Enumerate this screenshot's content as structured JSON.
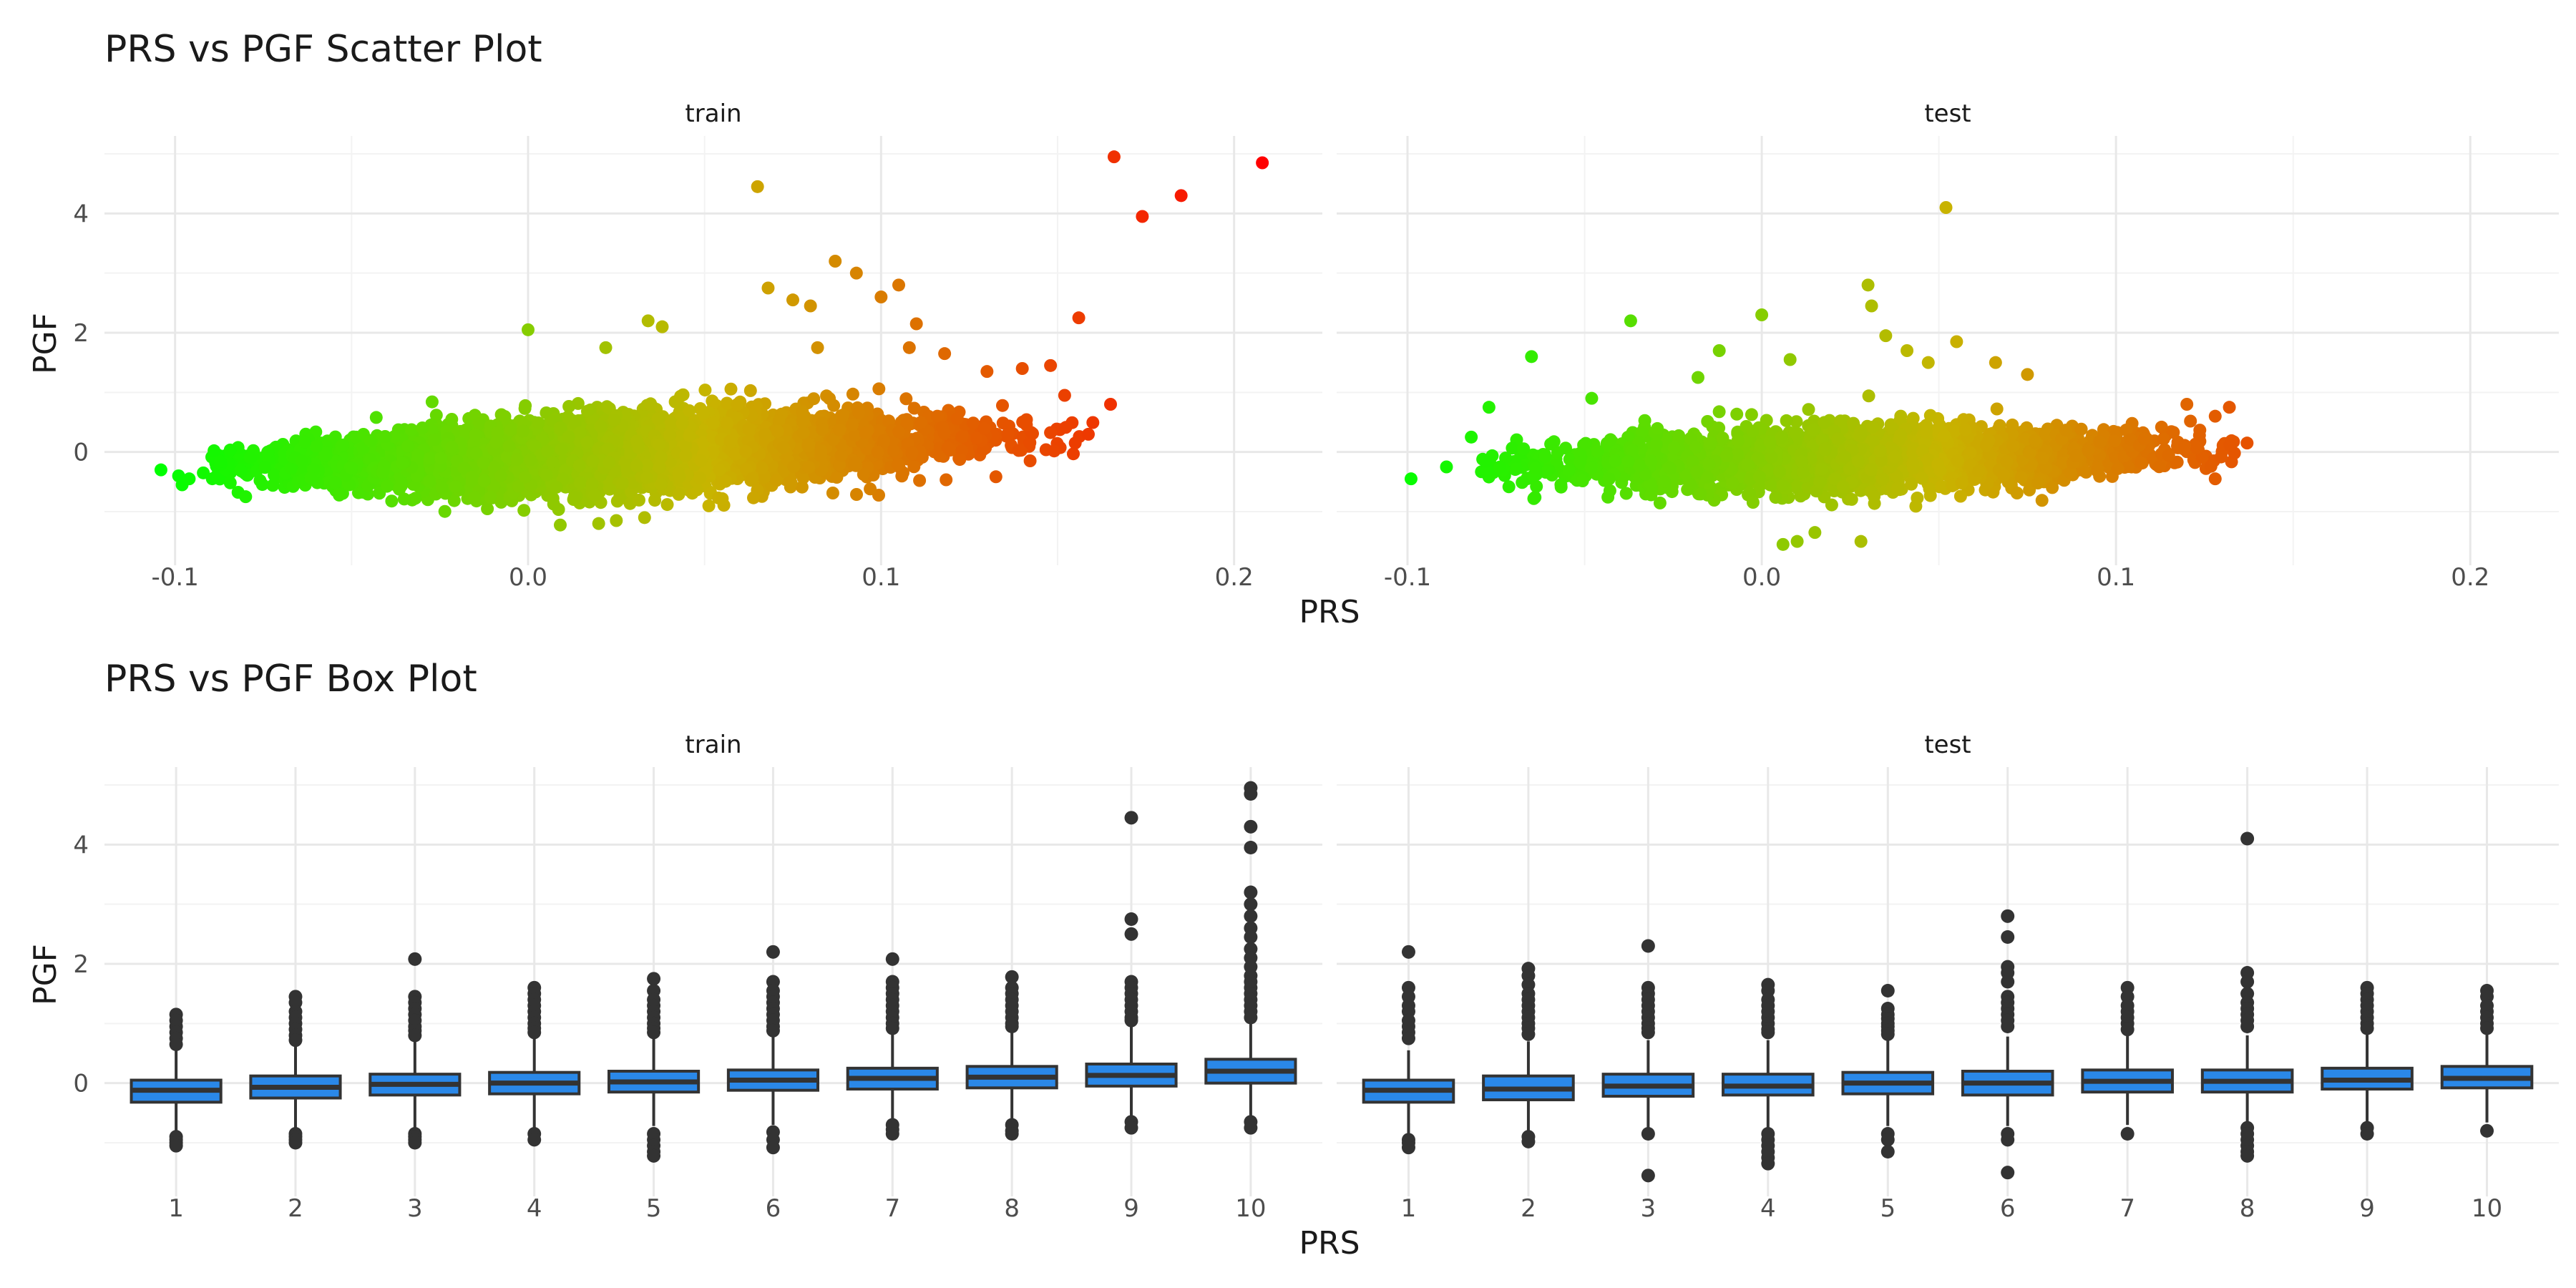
{
  "chart_data": [
    {
      "type": "scatter",
      "title": "PRS vs PGF Scatter Plot",
      "xlabel": "PRS",
      "ylabel": "PGF",
      "facets": [
        "train",
        "test"
      ],
      "xlim": [
        -0.12,
        0.225
      ],
      "ylim": [
        -1.9,
        5.3
      ],
      "x_ticks": [
        -0.1,
        0.0,
        0.1,
        0.2
      ],
      "x_tick_labels": [
        "-0.1",
        "0.0",
        "0.1",
        "0.2"
      ],
      "y_ticks": [
        0,
        2,
        4
      ],
      "y_tick_labels": [
        "0",
        "2",
        "4"
      ],
      "grid": true,
      "legend": "none",
      "color_scale": {
        "low": "#00ff00",
        "mid": "#c8b400",
        "high": "#ff0000",
        "mapped_to": "PRS"
      },
      "cloud_shape": {
        "train": {
          "x_range": [
            -0.09,
            0.16
          ],
          "y_center_at_min_x": -0.25,
          "y_center_at_max_x": 0.3,
          "y_spread": 0.55
        },
        "test": {
          "x_range": [
            -0.08,
            0.135
          ],
          "y_center_at_min_x": -0.25,
          "y_center_at_max_x": 0.05,
          "y_spread": 0.5
        }
      },
      "series": [
        {
          "name": "train",
          "points": [
            [
              -0.104,
              -0.3
            ],
            [
              -0.099,
              -0.4
            ],
            [
              -0.098,
              -0.55
            ],
            [
              -0.096,
              -0.45
            ],
            [
              -0.092,
              -0.35
            ],
            [
              -0.08,
              -0.75
            ],
            [
              0.0,
              2.05
            ],
            [
              0.022,
              1.75
            ],
            [
              0.034,
              2.2
            ],
            [
              0.038,
              2.1
            ],
            [
              0.065,
              4.45
            ],
            [
              0.068,
              2.75
            ],
            [
              0.075,
              2.55
            ],
            [
              0.08,
              2.45
            ],
            [
              0.082,
              1.75
            ],
            [
              0.087,
              3.2
            ],
            [
              0.093,
              3.0
            ],
            [
              0.1,
              2.6
            ],
            [
              0.105,
              2.8
            ],
            [
              0.108,
              1.75
            ],
            [
              0.11,
              2.15
            ],
            [
              0.118,
              1.65
            ],
            [
              0.13,
              1.35
            ],
            [
              0.14,
              1.4
            ],
            [
              0.148,
              1.45
            ],
            [
              0.152,
              0.95
            ],
            [
              0.155,
              0.15
            ],
            [
              0.156,
              2.25
            ],
            [
              0.165,
              0.8
            ],
            [
              0.166,
              4.95
            ],
            [
              0.174,
              3.95
            ],
            [
              0.185,
              4.3
            ],
            [
              0.208,
              4.85
            ],
            [
              0.02,
              -1.2
            ],
            [
              0.025,
              -1.15
            ],
            [
              0.033,
              -1.1
            ]
          ]
        },
        {
          "name": "test",
          "points": [
            [
              -0.099,
              -0.45
            ],
            [
              -0.089,
              -0.25
            ],
            [
              -0.082,
              0.25
            ],
            [
              -0.077,
              0.75
            ],
            [
              -0.065,
              1.6
            ],
            [
              -0.048,
              0.9
            ],
            [
              -0.037,
              2.2
            ],
            [
              -0.018,
              1.25
            ],
            [
              -0.012,
              1.7
            ],
            [
              0.0,
              2.3
            ],
            [
              0.008,
              1.55
            ],
            [
              0.03,
              2.8
            ],
            [
              0.031,
              2.45
            ],
            [
              0.035,
              1.95
            ],
            [
              0.041,
              1.7
            ],
            [
              0.047,
              1.5
            ],
            [
              0.052,
              4.1
            ],
            [
              0.055,
              1.85
            ],
            [
              0.066,
              1.5
            ],
            [
              0.075,
              1.3
            ],
            [
              0.12,
              0.8
            ],
            [
              0.128,
              0.6
            ],
            [
              0.128,
              -0.45
            ],
            [
              0.132,
              0.75
            ],
            [
              0.137,
              0.15
            ],
            [
              0.006,
              -1.55
            ],
            [
              0.01,
              -1.5
            ],
            [
              0.015,
              -1.35
            ],
            [
              0.028,
              -1.5
            ]
          ]
        }
      ]
    },
    {
      "type": "box",
      "title": "PRS vs PGF Box Plot",
      "xlabel": "PRS",
      "ylabel": "PGF",
      "facets": [
        "train",
        "test"
      ],
      "categories": [
        "1",
        "2",
        "3",
        "4",
        "5",
        "6",
        "7",
        "8",
        "9",
        "10"
      ],
      "ylim": [
        -1.9,
        5.3
      ],
      "y_ticks": [
        0,
        2,
        4
      ],
      "y_tick_labels": [
        "0",
        "2",
        "4"
      ],
      "grid": true,
      "box_color": "#2a88e8",
      "series": [
        {
          "name": "train",
          "boxes": [
            {
              "q1": -0.32,
              "median": -0.12,
              "q3": 0.05,
              "whisker_low": -0.85,
              "whisker_high": 0.55,
              "outliers": [
                1.15,
                1.05,
                0.95,
                0.85,
                0.75,
                0.65,
                -0.9,
                -0.95,
                -1.0,
                -1.05
              ]
            },
            {
              "q1": -0.25,
              "median": -0.07,
              "q3": 0.12,
              "whisker_low": -0.8,
              "whisker_high": 0.65,
              "outliers": [
                1.45,
                1.35,
                1.2,
                1.1,
                1.0,
                0.9,
                0.8,
                0.72,
                -0.85,
                -0.9,
                -0.95,
                -1.0
              ]
            },
            {
              "q1": -0.2,
              "median": -0.02,
              "q3": 0.15,
              "whisker_low": -0.78,
              "whisker_high": 0.72,
              "outliers": [
                2.08,
                1.45,
                1.35,
                1.25,
                1.15,
                1.05,
                0.95,
                0.88,
                0.8,
                -0.85,
                -0.9,
                -0.95,
                -1.0
              ]
            },
            {
              "q1": -0.18,
              "median": 0.0,
              "q3": 0.18,
              "whisker_low": -0.75,
              "whisker_high": 0.75,
              "outliers": [
                1.6,
                1.5,
                1.4,
                1.3,
                1.2,
                1.1,
                1.0,
                0.92,
                0.85,
                -0.85,
                -0.95
              ]
            },
            {
              "q1": -0.15,
              "median": 0.02,
              "q3": 0.2,
              "whisker_low": -0.72,
              "whisker_high": 0.78,
              "outliers": [
                1.75,
                1.55,
                1.4,
                1.3,
                1.2,
                1.1,
                1.0,
                0.92,
                0.85,
                -0.85,
                -0.95,
                -1.05,
                -1.15,
                -1.22
              ]
            },
            {
              "q1": -0.12,
              "median": 0.05,
              "q3": 0.22,
              "whisker_low": -0.7,
              "whisker_high": 0.82,
              "outliers": [
                2.2,
                1.7,
                1.55,
                1.45,
                1.35,
                1.25,
                1.15,
                1.05,
                0.95,
                0.88,
                -0.82,
                -0.95,
                -1.08
              ]
            },
            {
              "q1": -0.1,
              "median": 0.08,
              "q3": 0.25,
              "whisker_low": -0.68,
              "whisker_high": 0.85,
              "outliers": [
                2.08,
                1.7,
                1.6,
                1.5,
                1.4,
                1.3,
                1.2,
                1.1,
                1.0,
                0.92,
                -0.7,
                -0.78,
                -0.85
              ]
            },
            {
              "q1": -0.08,
              "median": 0.1,
              "q3": 0.28,
              "whisker_low": -0.65,
              "whisker_high": 0.9,
              "outliers": [
                1.78,
                1.6,
                1.5,
                1.4,
                1.3,
                1.2,
                1.1,
                1.0,
                0.95,
                -0.7,
                -0.8,
                -0.85
              ]
            },
            {
              "q1": -0.05,
              "median": 0.13,
              "q3": 0.32,
              "whisker_low": -0.62,
              "whisker_high": 0.98,
              "outliers": [
                4.45,
                2.75,
                2.5,
                1.7,
                1.6,
                1.5,
                1.4,
                1.3,
                1.2,
                1.1,
                1.05,
                -0.65,
                -0.75
              ]
            },
            {
              "q1": 0.0,
              "median": 0.2,
              "q3": 0.4,
              "whisker_low": -0.6,
              "whisker_high": 1.0,
              "outliers": [
                4.95,
                4.85,
                4.3,
                3.95,
                3.2,
                3.0,
                2.8,
                2.6,
                2.45,
                2.25,
                2.1,
                1.95,
                1.8,
                1.7,
                1.6,
                1.5,
                1.4,
                1.3,
                1.2,
                1.1,
                -0.65,
                -0.75
              ]
            }
          ]
        },
        {
          "name": "test",
          "boxes": [
            {
              "q1": -0.32,
              "median": -0.12,
              "q3": 0.05,
              "whisker_low": -0.85,
              "whisker_high": 0.55,
              "outliers": [
                2.2,
                1.6,
                1.45,
                1.3,
                1.2,
                1.05,
                0.95,
                0.85,
                0.75,
                -0.95,
                -1.0,
                -1.08
              ]
            },
            {
              "q1": -0.28,
              "median": -0.1,
              "q3": 0.12,
              "whisker_low": -0.82,
              "whisker_high": 0.7,
              "outliers": [
                1.92,
                1.8,
                1.65,
                1.5,
                1.4,
                1.3,
                1.2,
                1.1,
                1.0,
                0.92,
                0.82,
                -0.9,
                -0.98
              ]
            },
            {
              "q1": -0.22,
              "median": -0.05,
              "q3": 0.15,
              "whisker_low": -0.78,
              "whisker_high": 0.72,
              "outliers": [
                2.3,
                1.6,
                1.5,
                1.4,
                1.3,
                1.2,
                1.1,
                1.0,
                0.92,
                0.85,
                -0.85,
                -1.55
              ]
            },
            {
              "q1": -0.2,
              "median": -0.05,
              "q3": 0.15,
              "whisker_low": -0.75,
              "whisker_high": 0.72,
              "outliers": [
                1.65,
                1.55,
                1.4,
                1.3,
                1.2,
                1.1,
                1.0,
                0.9,
                0.85,
                -0.85,
                -0.95,
                -1.05,
                -1.15,
                -1.25,
                -1.35
              ]
            },
            {
              "q1": -0.18,
              "median": 0.0,
              "q3": 0.18,
              "whisker_low": -0.72,
              "whisker_high": 0.75,
              "outliers": [
                1.55,
                1.25,
                1.15,
                1.08,
                1.0,
                0.95,
                0.88,
                0.82,
                -0.85,
                -0.95,
                -1.15
              ]
            },
            {
              "q1": -0.2,
              "median": 0.0,
              "q3": 0.2,
              "whisker_low": -0.72,
              "whisker_high": 0.78,
              "outliers": [
                2.8,
                2.45,
                1.95,
                1.85,
                1.7,
                1.45,
                1.35,
                1.25,
                1.15,
                1.05,
                0.95,
                -0.85,
                -0.95,
                -1.5
              ]
            },
            {
              "q1": -0.15,
              "median": 0.03,
              "q3": 0.22,
              "whisker_low": -0.7,
              "whisker_high": 0.8,
              "outliers": [
                1.6,
                1.45,
                1.3,
                1.2,
                1.1,
                1.0,
                0.9,
                -0.85
              ]
            },
            {
              "q1": -0.15,
              "median": 0.03,
              "q3": 0.22,
              "whisker_low": -0.7,
              "whisker_high": 0.8,
              "outliers": [
                4.1,
                1.85,
                1.7,
                1.5,
                1.35,
                1.25,
                1.15,
                1.05,
                0.95,
                -0.75,
                -0.85,
                -0.95,
                -1.05,
                -1.15,
                -1.22
              ]
            },
            {
              "q1": -0.1,
              "median": 0.05,
              "q3": 0.25,
              "whisker_low": -0.68,
              "whisker_high": 0.82,
              "outliers": [
                1.6,
                1.5,
                1.4,
                1.3,
                1.2,
                1.1,
                1.0,
                0.92,
                -0.75,
                -0.85
              ]
            },
            {
              "q1": -0.08,
              "median": 0.08,
              "q3": 0.28,
              "whisker_low": -0.66,
              "whisker_high": 0.85,
              "outliers": [
                1.55,
                1.45,
                1.3,
                1.2,
                1.1,
                1.0,
                0.92,
                -0.8
              ]
            }
          ]
        }
      ]
    }
  ]
}
